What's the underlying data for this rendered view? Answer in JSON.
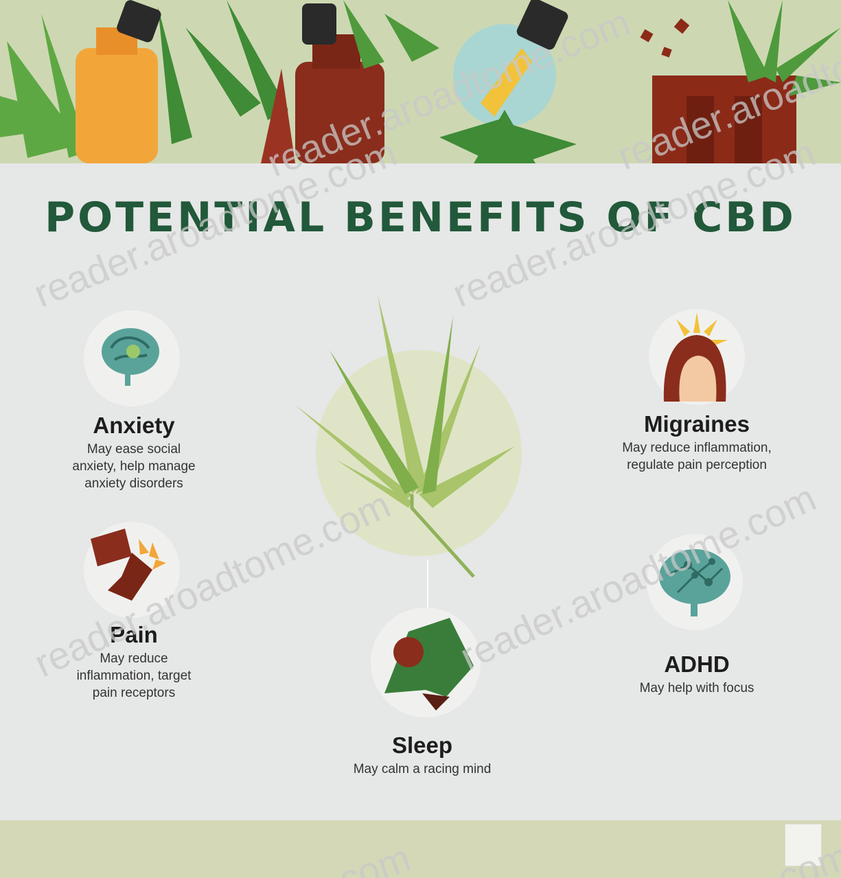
{
  "title": "POTENTIAL BENEFITS OF CBD",
  "benefits": {
    "anxiety": {
      "title": "Anxiety",
      "desc_lines": [
        "May ease social",
        "anxiety, help manage",
        "anxiety disorders"
      ]
    },
    "migraines": {
      "title": "Migraines",
      "desc_lines": [
        "May reduce inflammation,",
        "regulate pain perception"
      ]
    },
    "pain": {
      "title": "Pain",
      "desc_lines": [
        "May reduce",
        "inflammation, target",
        "pain receptors"
      ]
    },
    "adhd": {
      "title": "ADHD",
      "desc_lines": [
        "May help with focus"
      ]
    },
    "sleep": {
      "title": "Sleep",
      "desc_lines": [
        "May calm a racing mind"
      ]
    }
  },
  "watermarks": [
    "reader.aroadtome.com",
    "reader.aroadtome.com",
    "reader.aroadtome.com",
    "reader.aroadtome.com",
    "reader.aroadtome.com",
    "reader.aroadtome.com",
    ".com",
    ".com"
  ],
  "icons": {
    "anxiety": "brain-icon",
    "migraines": "woman-headache-icon",
    "pain": "knee-joint-icon",
    "adhd": "brain-network-icon",
    "sleep": "sleeping-person-icon",
    "center": "cannabis-leaf-icon"
  },
  "colors": {
    "title": "#21593a",
    "leaf_green": "#4f9a3c",
    "brown": "#7a2a1c",
    "orange": "#f2a63a",
    "teal": "#5aa39a"
  }
}
